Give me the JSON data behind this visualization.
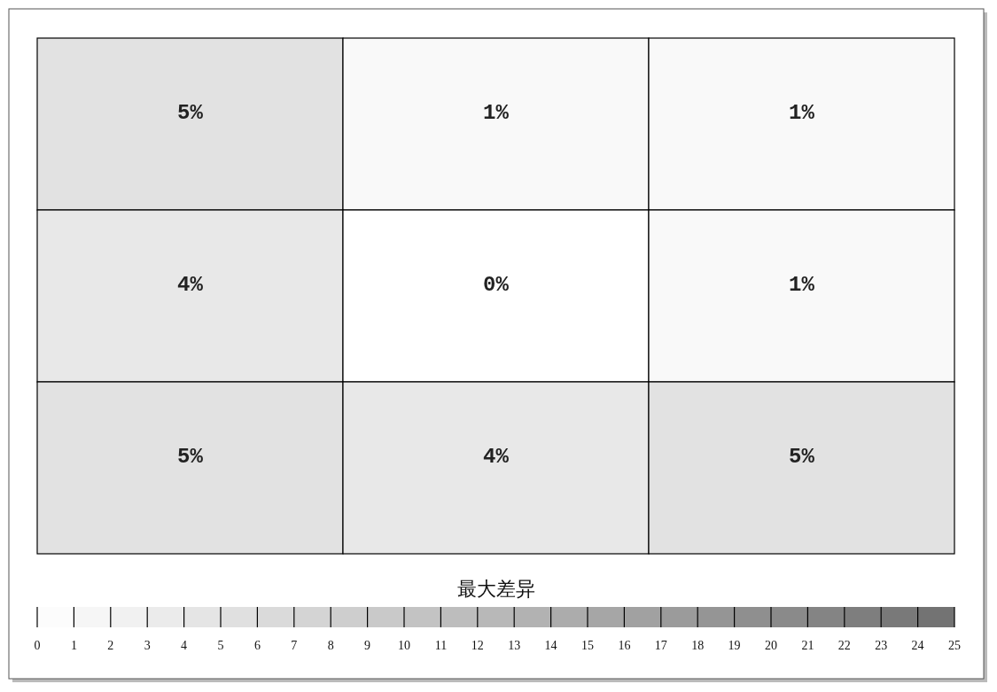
{
  "chart_data": {
    "type": "heatmap",
    "categories": [
      null,
      null,
      null
    ],
    "y_categories": [
      null,
      null,
      null
    ],
    "cells": [
      [
        5,
        1,
        1
      ],
      [
        4,
        0,
        1
      ],
      [
        5,
        4,
        5
      ]
    ],
    "cell_labels": [
      [
        "5%",
        "1%",
        "1%"
      ],
      [
        "4%",
        "0%",
        "1%"
      ],
      [
        "5%",
        "4%",
        "5%"
      ]
    ],
    "clabel": "最大差异",
    "clim": [
      0,
      25
    ],
    "cticks": [
      0,
      1,
      2,
      3,
      4,
      5,
      6,
      7,
      8,
      9,
      10,
      11,
      12,
      13,
      14,
      15,
      16,
      17,
      18,
      19,
      20,
      21,
      22,
      23,
      24,
      25
    ]
  }
}
